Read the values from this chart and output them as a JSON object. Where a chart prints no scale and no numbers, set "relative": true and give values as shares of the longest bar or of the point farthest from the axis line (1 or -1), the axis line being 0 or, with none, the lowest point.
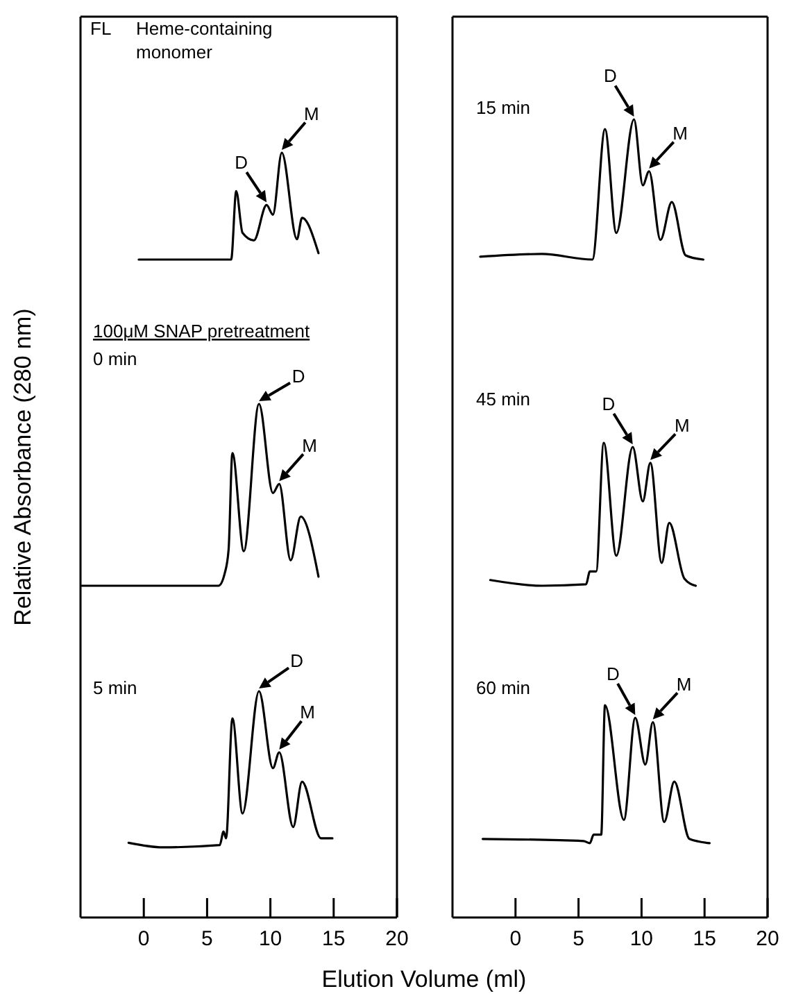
{
  "chart_data": [
    {
      "type": "line",
      "title": "FL",
      "subtitle": "Heme-containing monomer",
      "ylabel": "Relative Absorbance (280 nm)",
      "xlabel": "Elution Volume (ml)",
      "relative": true,
      "xlim": [
        -5,
        20
      ],
      "tick_labels": false,
      "color": "#000000",
      "x": [
        -0.4,
        6.9,
        7.3,
        7.8,
        8.7,
        9.7,
        10.2,
        10.9,
        12.1,
        12.5,
        13.8
      ],
      "values": [
        0,
        0,
        0.64,
        0.25,
        0.18,
        0.51,
        0.42,
        1,
        0.19,
        0.39,
        0.06
      ],
      "annotations": [
        {
          "text": "D",
          "x": 9.7,
          "y": 0.51
        },
        {
          "text": "M",
          "x": 10.9,
          "y": 1
        }
      ]
    },
    {
      "type": "line",
      "title": "0 min",
      "relative": true,
      "xlim": [
        -5,
        20
      ],
      "tick_labels": false,
      "color": "#000000",
      "x": [
        -4.9,
        5.9,
        6.4,
        6.7,
        7.0,
        7.9,
        9.1,
        10.2,
        10.7,
        11.6,
        12.4,
        13.8
      ],
      "values": [
        0,
        0,
        0.07,
        0.2,
        0.73,
        0.19,
        1,
        0.51,
        0.56,
        0.14,
        0.38,
        0.05
      ],
      "annotations": [
        "100μM SNAP pretreatment",
        {
          "text": "D",
          "x": 9.1,
          "y": 1
        },
        {
          "text": "M",
          "x": 10.7,
          "y": 0.56
        }
      ]
    },
    {
      "type": "line",
      "title": "5 min",
      "relative": true,
      "xlim": [
        -5,
        20
      ],
      "xticks": [
        0,
        5,
        10,
        15,
        20
      ],
      "tick_labels": "x",
      "color": "#000000",
      "x": [
        -1.2,
        1.5,
        6.0,
        6.3,
        6.5,
        7.0,
        7.8,
        9.1,
        10.2,
        10.7,
        11.8,
        12.5,
        14.0,
        14.9
      ],
      "values": [
        0.33,
        0.31,
        0.32,
        0.38,
        0.35,
        0.88,
        0.46,
        1,
        0.66,
        0.73,
        0.4,
        0.6,
        0.35,
        0.35
      ],
      "annotations": [
        {
          "text": "D",
          "x": 9.1,
          "y": 1
        },
        {
          "text": "M",
          "x": 10.7,
          "y": 0.73
        }
      ]
    },
    {
      "type": "line",
      "title": "15 min",
      "relative": true,
      "xlim": [
        -5,
        20
      ],
      "tick_labels": false,
      "color": "#000000",
      "x": [
        -2.8,
        2.1,
        6.1,
        7.1,
        8.0,
        9.4,
        10.1,
        10.6,
        11.5,
        12.4,
        13.5,
        14.9
      ],
      "values": [
        0.02,
        0.04,
        0,
        0.93,
        0.19,
        1,
        0.53,
        0.63,
        0.14,
        0.41,
        0.03,
        0
      ],
      "annotations": [
        {
          "text": "D",
          "x": 9.4,
          "y": 1
        },
        {
          "text": "M",
          "x": 10.6,
          "y": 0.63
        }
      ]
    },
    {
      "type": "line",
      "title": "45 min",
      "relative": true,
      "xlim": [
        -5,
        20
      ],
      "tick_labels": false,
      "color": "#000000",
      "x": [
        -2.0,
        2.1,
        5.6,
        5.9,
        6.4,
        7.0,
        8.0,
        9.3,
        10.1,
        10.7,
        11.6,
        12.2,
        13.4,
        14.3
      ],
      "values": [
        0.04,
        0,
        0.01,
        0.1,
        0.1,
        1,
        0.21,
        0.97,
        0.59,
        0.86,
        0.16,
        0.44,
        0.05,
        0
      ],
      "annotations": [
        {
          "text": "D",
          "x": 9.3,
          "y": 0.97
        },
        {
          "text": "M",
          "x": 10.7,
          "y": 0.86
        }
      ]
    },
    {
      "type": "line",
      "title": "60 min",
      "relative": true,
      "xlim": [
        -5,
        20
      ],
      "xticks": [
        0,
        5,
        10,
        15,
        20
      ],
      "tick_labels": "x",
      "color": "#000000",
      "x": [
        -2.6,
        5.4,
        5.9,
        6.2,
        6.8,
        7.1,
        8.6,
        9.5,
        10.3,
        10.9,
        11.8,
        12.6,
        13.8,
        15.4
      ],
      "values": [
        0.37,
        0.36,
        0.35,
        0.39,
        0.39,
        1,
        0.46,
        0.94,
        0.72,
        0.92,
        0.45,
        0.64,
        0.37,
        0.35
      ],
      "annotations": [
        {
          "text": "D",
          "x": 9.5,
          "y": 0.94
        },
        {
          "text": "M",
          "x": 10.9,
          "y": 0.92
        }
      ]
    }
  ]
}
